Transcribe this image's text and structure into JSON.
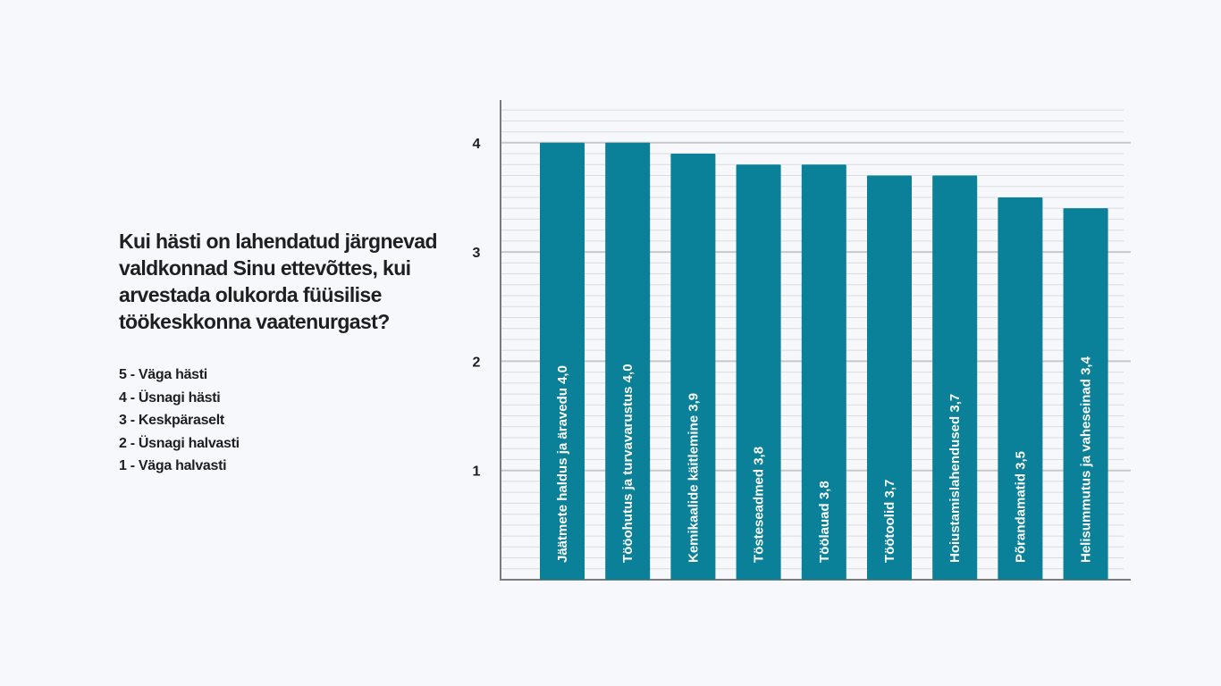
{
  "question": "Kui hästi on lahendatud järgnevad valdkonnad Sinu ettevõttes, kui arvestada olukorda füüsilise töökeskkonna vaatenurgast?",
  "scale": [
    "5 - Väga hästi",
    "4 - Üsnagi hästi",
    "3 - Keskpäraselt",
    "2 - Üsnagi halvasti",
    "1 - Väga halvasti"
  ],
  "chart_data": {
    "type": "bar",
    "categories": [
      "Jäätmete haldus ja äravedu",
      "Tööohutus ja turvavarustus",
      "Kemikaalide käitlemine",
      "Tösteseadmed",
      "Töölauad",
      "Töötoolid",
      "Hoiustamislahendused",
      "Põrandamatid",
      "Helisummutus ja vaheseinad"
    ],
    "values": [
      4.0,
      4.0,
      3.9,
      3.8,
      3.8,
      3.7,
      3.7,
      3.5,
      3.4
    ],
    "data_labels": [
      "Jäätmete haldus ja äravedu  4,0",
      "Tööohutus ja turvavarustus  4,0",
      "Kemikaalide käitlemine 3,9",
      "Tösteseadmed  3,8",
      "Töölauad  3,8",
      "Töötoolid  3,7",
      "Hoiustamislahendused 3,7",
      "Põrandamatid  3,5",
      "Helisummutus ja vaheseinad 3,4"
    ],
    "yticks": [
      "1",
      "2",
      "3",
      "4"
    ],
    "ylim": [
      0,
      4.3
    ],
    "grid": true,
    "bar_color": "#0a8099",
    "grid_major_color": "#c8c8c8",
    "grid_minor_color": "#dcdcdc",
    "axis_color": "#7a7a7a"
  }
}
